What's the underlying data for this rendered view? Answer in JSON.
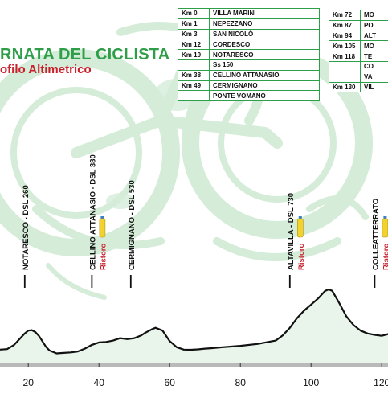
{
  "title": "RNATA DEL CICLISTA",
  "subtitle": "ofilo Altimetrico",
  "route_table_left": [
    {
      "km": "Km 0",
      "place": "VILLA MARINI"
    },
    {
      "km": "Km 1",
      "place": "NEPEZZANO"
    },
    {
      "km": "Km 3",
      "place": "SAN NICOLÒ"
    },
    {
      "km": "Km 12",
      "place": "CORDESCO"
    },
    {
      "km": "Km 19",
      "place": "NOTARESCO"
    },
    {
      "km": "",
      "place": "Ss 150"
    },
    {
      "km": "Km 38",
      "place": "CELLINO ATTANASIO"
    },
    {
      "km": "Km 49",
      "place": "CERMIGNANO"
    },
    {
      "km": "",
      "place": "PONTE VOMANO"
    }
  ],
  "route_table_right": [
    {
      "km": "Km 72",
      "place": "MO"
    },
    {
      "km": "Km 87",
      "place": "PO"
    },
    {
      "km": "Km 94",
      "place": "ALT"
    },
    {
      "km": "Km 105",
      "place": "MO"
    },
    {
      "km": "Km 118",
      "place": "TE"
    },
    {
      "km": "",
      "place": "CO"
    },
    {
      "km": "",
      "place": "VA"
    },
    {
      "km": "Km 130",
      "place": "VIL"
    }
  ],
  "chart_data": {
    "type": "area",
    "title": "RNATA DEL CICLISTA",
    "subtitle": "ofilo Altimetrico",
    "xlabel": "",
    "ylabel": "",
    "xlim": [
      12,
      122
    ],
    "xticks": [
      20,
      40,
      60,
      80,
      100,
      120
    ],
    "grid": false,
    "series": [
      {
        "x": [
          12,
          14,
          16,
          18,
          19,
          20,
          21,
          22,
          23,
          25,
          26,
          28,
          30,
          32,
          34,
          36,
          38,
          40,
          42,
          44,
          46,
          48,
          50,
          52,
          53,
          54,
          55,
          56,
          58,
          60,
          62,
          64,
          66,
          68,
          70,
          72,
          75,
          80,
          85,
          90,
          92,
          94,
          96,
          98,
          100,
          102,
          104,
          105,
          106,
          108,
          110,
          112,
          114,
          116,
          118,
          120,
          122
        ],
        "y": [
          70,
          75,
          120,
          200,
          240,
          270,
          275,
          255,
          215,
          100,
          60,
          30,
          35,
          40,
          50,
          80,
          120,
          145,
          150,
          165,
          190,
          180,
          190,
          220,
          245,
          265,
          285,
          300,
          270,
          160,
          95,
          70,
          68,
          72,
          80,
          85,
          95,
          110,
          130,
          165,
          220,
          300,
          400,
          480,
          545,
          610,
          690,
          705,
          690,
          560,
          420,
          330,
          270,
          240,
          225,
          215,
          235
        ]
      }
    ],
    "annotations": [
      {
        "x": 19,
        "label": "NOTARESCO - DSL 260",
        "ristoro": false
      },
      {
        "x": 38,
        "label": "CELLINO ATTANASIO - DSL 380",
        "ristoro": true,
        "ristoro_label": "Ristoro"
      },
      {
        "x": 49,
        "label": "CERMIGNANO - DSL 530",
        "ristoro": false
      },
      {
        "x": 94,
        "label": "ALTAVILLA - DSL 730",
        "ristoro": true,
        "ristoro_label": "Ristoro"
      },
      {
        "x": 118,
        "label": "COLLEATTERRATO",
        "ristoro": true,
        "ristoro_label": "Ristoro"
      }
    ]
  },
  "colors": {
    "green": "#2e9e48",
    "red": "#c8202c",
    "watermark": "#d4ecd8",
    "profile": "#111111",
    "bottle": "#f2d22e",
    "bottle_cap": "#3a7fc1"
  }
}
